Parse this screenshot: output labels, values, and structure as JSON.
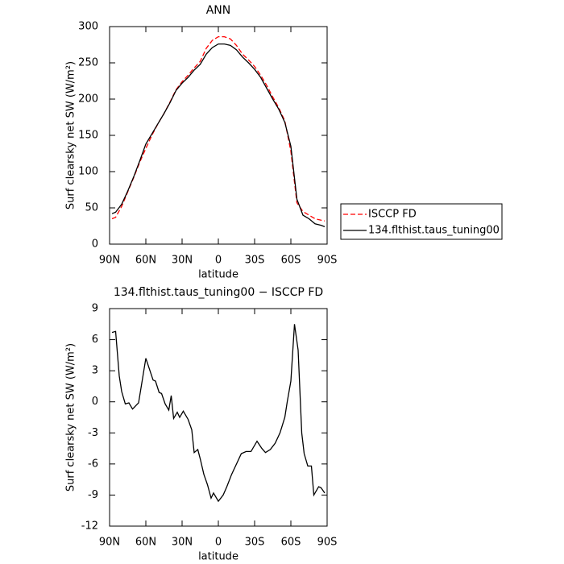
{
  "chart_data": [
    {
      "type": "line",
      "title": "ANN",
      "xlabel": "latitude",
      "ylabel": "Surf clearsky net SW (W/m²)",
      "x": [
        88,
        85,
        80,
        75,
        70,
        65,
        60,
        55,
        50,
        45,
        40,
        35,
        30,
        25,
        20,
        15,
        10,
        5,
        0,
        -5,
        -10,
        -15,
        -20,
        -25,
        -30,
        -35,
        -40,
        -45,
        -50,
        -55,
        -60,
        -65,
        -70,
        -75,
        -80,
        -85,
        -88
      ],
      "series": [
        {
          "name": "ISCCP FD",
          "color": "#ff0000",
          "dashed": true,
          "values": [
            35,
            37,
            52,
            72,
            92,
            113,
            132,
            150,
            166,
            180,
            196,
            213,
            224,
            233,
            243,
            252,
            270,
            281,
            286,
            286,
            283,
            274,
            262,
            254,
            245,
            233,
            219,
            203,
            188,
            170,
            128,
            57,
            45,
            40,
            35,
            33,
            32
          ]
        },
        {
          "name": "134.flthist.taus_tuning00",
          "color": "#000000",
          "dashed": false,
          "values": [
            42,
            44,
            55,
            73,
            93,
            115,
            138,
            152,
            166,
            180,
            195,
            212,
            222,
            230,
            240,
            248,
            262,
            271,
            276,
            276,
            274,
            268,
            258,
            250,
            241,
            230,
            215,
            200,
            186,
            168,
            135,
            62,
            40,
            35,
            28,
            26,
            24
          ]
        }
      ],
      "xlim": [
        90,
        -90
      ],
      "xticks": [
        {
          "value": 90,
          "label": "90N"
        },
        {
          "value": 60,
          "label": "60N"
        },
        {
          "value": 30,
          "label": "30N"
        },
        0,
        {
          "value": -30,
          "label": "30S"
        },
        {
          "value": -60,
          "label": "60S"
        },
        {
          "value": -90,
          "label": "90S"
        }
      ],
      "ylim": [
        0,
        300
      ],
      "yticks": [
        0,
        50,
        100,
        150,
        200,
        250,
        300
      ],
      "legend": "right"
    },
    {
      "type": "line",
      "title": "134.flthist.taus_tuning00 − ISCCP FD",
      "xlabel": "latitude",
      "ylabel": "Surf clearsky net SW (W/m²)",
      "x": [
        88,
        85,
        82,
        80,
        77,
        74,
        71,
        66,
        60,
        56,
        54,
        52,
        49,
        47,
        44,
        41,
        39,
        37,
        34,
        32,
        29,
        25,
        22,
        20,
        17,
        15,
        12,
        9,
        6,
        4,
        0,
        -4,
        -7,
        -11,
        -15,
        -19,
        -23,
        -27,
        -32,
        -36,
        -39,
        -43,
        -47,
        -51,
        -55,
        -57,
        -60,
        -63,
        -66,
        -69,
        -71,
        -74,
        -77,
        -79,
        -83,
        -85,
        -88
      ],
      "series": [
        {
          "name": "134.flthist.taus_tuning00 − ISCCP FD",
          "color": "#000000",
          "dashed": false,
          "values": [
            6.7,
            6.8,
            2.5,
            1.0,
            -0.2,
            -0.1,
            -0.7,
            -0.1,
            4.2,
            2.8,
            2.1,
            2.0,
            0.9,
            0.8,
            -0.2,
            -0.8,
            0.6,
            -1.6,
            -1.0,
            -1.5,
            -0.9,
            -1.7,
            -2.7,
            -4.9,
            -4.6,
            -5.5,
            -7.0,
            -8.0,
            -9.3,
            -8.8,
            -9.6,
            -9.0,
            -8.2,
            -7.0,
            -6.0,
            -5.0,
            -4.8,
            -4.8,
            -3.8,
            -4.5,
            -4.9,
            -4.6,
            -4.0,
            -3.0,
            -1.5,
            0.0,
            2.0,
            7.5,
            5.0,
            -3.0,
            -5.0,
            -6.2,
            -6.2,
            -9.0,
            -8.2,
            -8.3,
            -8.8
          ]
        }
      ],
      "xlim": [
        90,
        -90
      ],
      "xticks": [
        {
          "value": 90,
          "label": "90N"
        },
        {
          "value": 60,
          "label": "60N"
        },
        {
          "value": 30,
          "label": "30N"
        },
        0,
        {
          "value": -30,
          "label": "30S"
        },
        {
          "value": -60,
          "label": "60S"
        },
        {
          "value": -90,
          "label": "90S"
        }
      ],
      "ylim": [
        -12,
        9
      ],
      "yticks": [
        -12,
        -9,
        -6,
        -3,
        0,
        3,
        6,
        9
      ]
    }
  ]
}
